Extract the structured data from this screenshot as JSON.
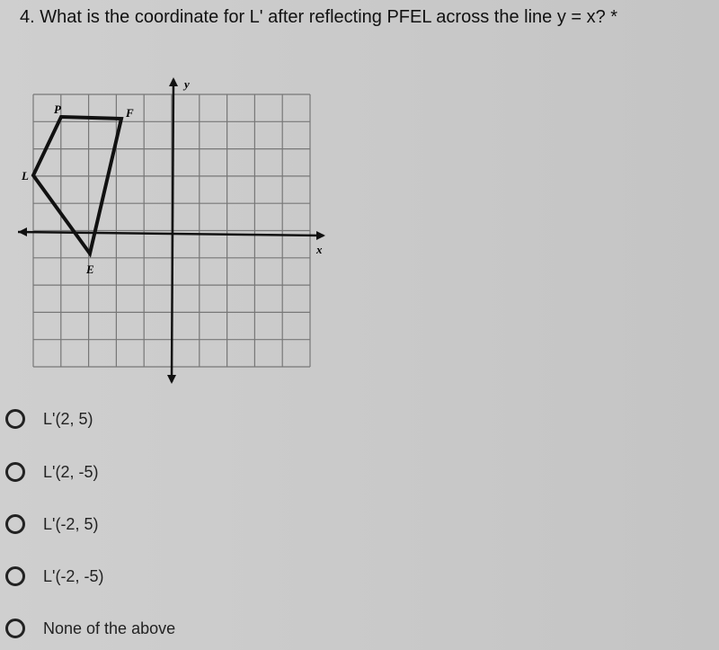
{
  "question": {
    "title": "4. What is the coordinate for L' after reflecting PFEL across the line y = x?",
    "required_marker": "*"
  },
  "figure": {
    "points": {
      "P": "P",
      "F": "F",
      "L": "L",
      "E": "E"
    },
    "x_axis_label": "x",
    "y_axis_label": "y"
  },
  "options": [
    "L'(2, 5)",
    "L'(2, -5)",
    "L'(-2, 5)",
    "L'(-2, -5)",
    "None of the above"
  ]
}
